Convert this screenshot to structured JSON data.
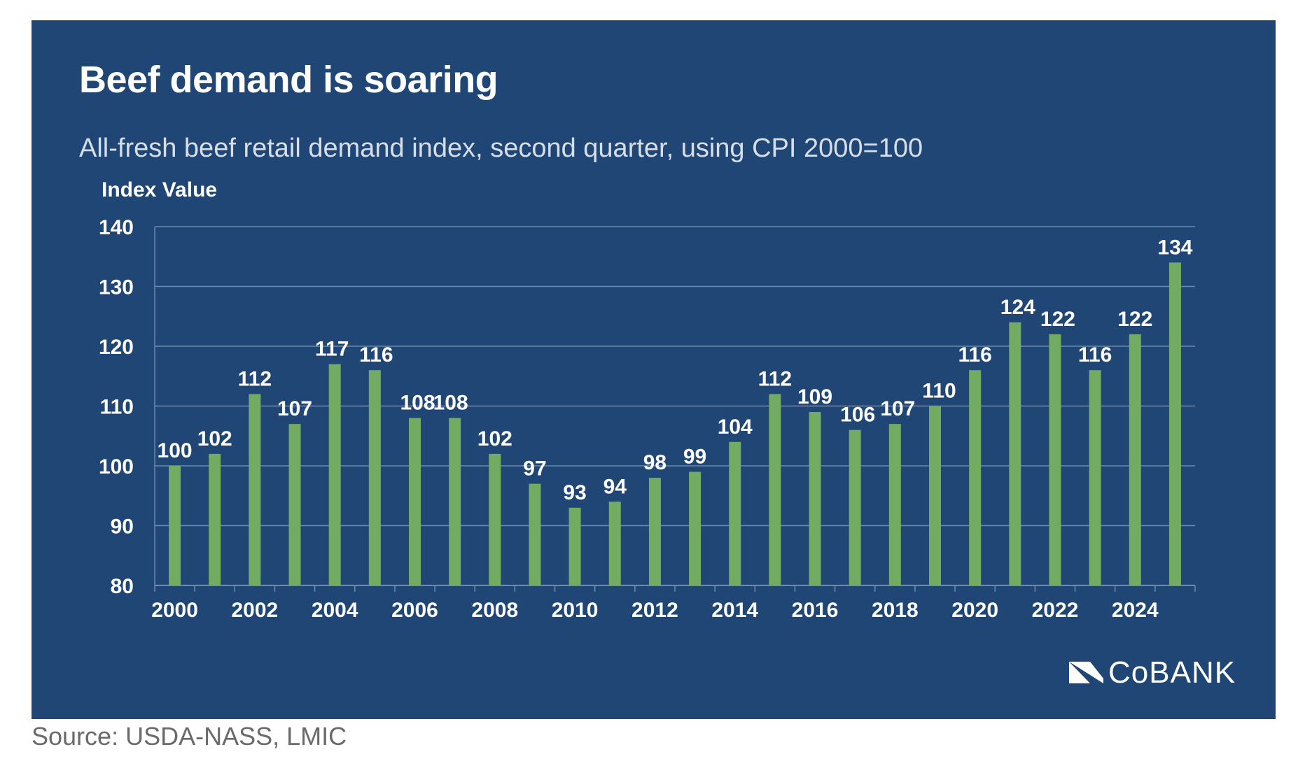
{
  "title": "Beef demand is soaring",
  "subtitle": "All-fresh beef retail demand index, second quarter, using CPI 2000=100",
  "source": "Source: USDA-NASS, LMIC",
  "logo": {
    "text": "CoBANK",
    "icon": "cobank-logo-icon"
  },
  "colors": {
    "background": "#1f4675",
    "bar": "#74ab62",
    "gridline": "#6f8aae",
    "text": "#ffffff",
    "source_text": "#6a6a6a"
  },
  "chart_data": {
    "type": "bar",
    "title": "Beef demand is soaring",
    "subtitle": "All-fresh beef retail demand index, second quarter, using CPI 2000=100",
    "ylabel": "Index Value",
    "xlabel": "",
    "ylim": [
      80,
      140
    ],
    "yticks": [
      80,
      90,
      100,
      110,
      120,
      130,
      140
    ],
    "xtick_labels": [
      "2000",
      "2002",
      "2004",
      "2006",
      "2008",
      "2010",
      "2012",
      "2014",
      "2016",
      "2018",
      "2020",
      "2022",
      "2024"
    ],
    "grid": true,
    "legend": "none",
    "categories": [
      "2000",
      "2001",
      "2002",
      "2003",
      "2004",
      "2005",
      "2006",
      "2007",
      "2008",
      "2009",
      "2010",
      "2011",
      "2012",
      "2013",
      "2014",
      "2015",
      "2016",
      "2017",
      "2018",
      "2019",
      "2020",
      "2021",
      "2022",
      "2023",
      "2024",
      "2025"
    ],
    "values": [
      100,
      102,
      112,
      107,
      117,
      116,
      108,
      108,
      102,
      97,
      93,
      94,
      98,
      99,
      104,
      112,
      109,
      106,
      107,
      110,
      116,
      124,
      122,
      116,
      122,
      134
    ],
    "value_labels": [
      "100",
      "102",
      "112",
      "107",
      "117",
      "116",
      "108",
      "108",
      "102",
      "97",
      "93",
      "94",
      "98",
      "99",
      "104",
      "112",
      "109",
      "106",
      "107",
      "110",
      "116",
      "124",
      "122",
      "116",
      "122",
      "134"
    ]
  }
}
